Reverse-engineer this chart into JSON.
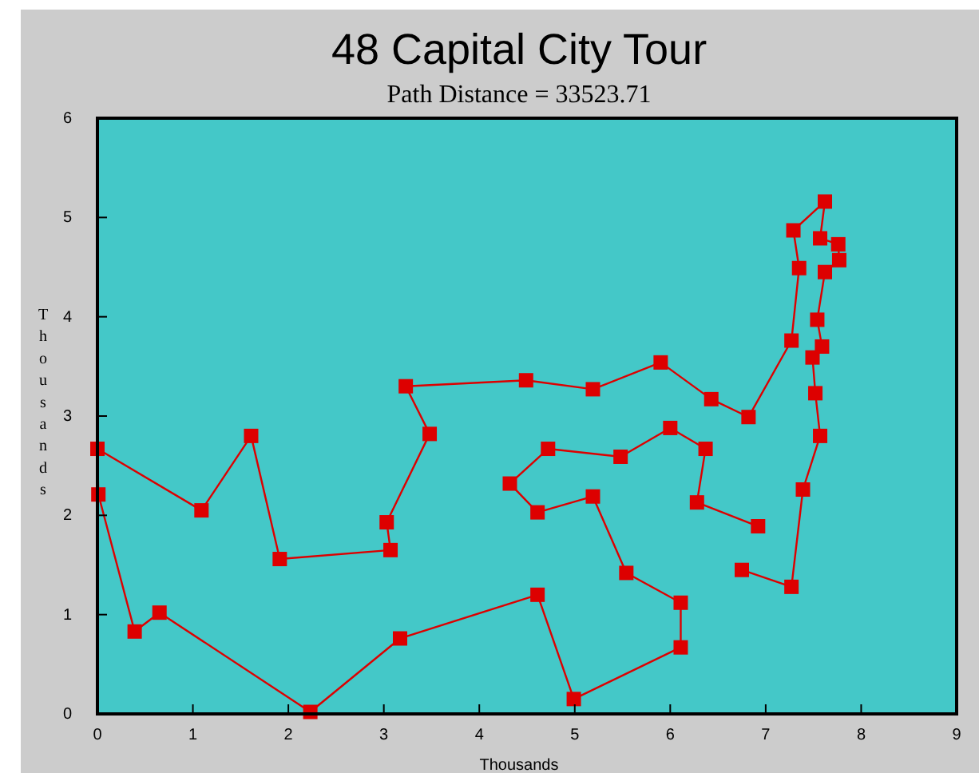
{
  "chart_data": {
    "type": "line",
    "title": "48 Capital City Tour",
    "subtitle": "Path Distance =  33523.71",
    "xlabel": "Thousands",
    "ylabel": "Thousands",
    "marker": "square",
    "line_style": "solid",
    "grid": false,
    "xlim": [
      0,
      9
    ],
    "ylim": [
      0,
      6
    ],
    "xticks": [
      0,
      1,
      2,
      3,
      4,
      5,
      6,
      7,
      8,
      9
    ],
    "yticks": [
      0,
      1,
      2,
      3,
      4,
      5,
      6
    ],
    "series": [
      {
        "color": "#dd0000",
        "x": [
          6.92,
          6.28,
          6.37,
          6.0,
          5.48,
          4.72,
          4.32,
          4.61,
          5.19,
          5.54,
          6.11,
          6.11,
          4.99,
          4.61,
          3.17,
          2.23,
          0.65,
          0.39,
          0.01,
          0.0,
          1.09,
          1.61,
          1.91,
          3.07,
          3.03,
          3.48,
          3.23,
          4.49,
          5.19,
          5.9,
          6.43,
          6.82,
          7.27,
          7.35,
          7.29,
          7.62,
          7.57,
          7.76,
          7.77,
          7.62,
          7.54,
          7.59,
          7.49,
          7.52,
          7.57,
          7.39,
          7.27,
          6.75
        ],
        "values": [
          1.89,
          2.13,
          2.67,
          2.88,
          2.59,
          2.67,
          2.32,
          2.03,
          2.19,
          1.42,
          1.12,
          0.67,
          0.15,
          1.2,
          0.76,
          0.02,
          1.02,
          0.83,
          2.21,
          2.67,
          2.05,
          2.8,
          1.56,
          1.65,
          1.93,
          2.82,
          3.3,
          3.36,
          3.27,
          3.54,
          3.17,
          2.99,
          3.76,
          4.49,
          4.87,
          5.16,
          4.79,
          4.73,
          4.57,
          4.45,
          3.97,
          3.7,
          3.59,
          3.23,
          2.8,
          2.26,
          1.28,
          1.45
        ]
      }
    ]
  }
}
